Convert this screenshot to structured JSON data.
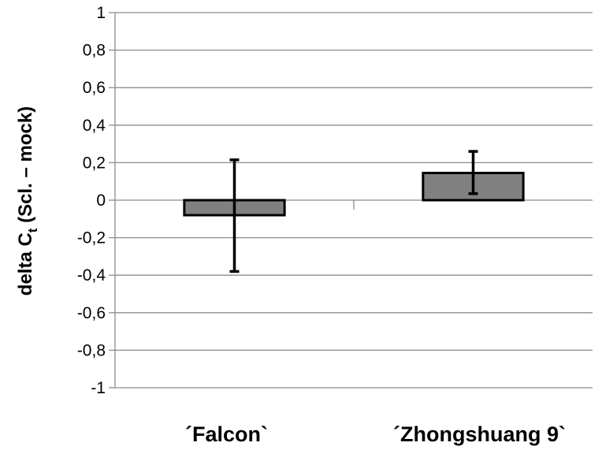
{
  "chart_data": {
    "type": "bar",
    "categories": [
      "´Falcon`",
      "´Zhongshuang 9`"
    ],
    "values": [
      -0.08,
      0.145
    ],
    "error_high": [
      0.215,
      0.26
    ],
    "error_low": [
      -0.38,
      0.035
    ],
    "ylabel": {
      "main": "delta C",
      "subscript": "t",
      "suffix": " (Scl. – mock)"
    },
    "ylim": [
      -1,
      1
    ],
    "yticks": [
      1,
      0.8,
      0.6,
      0.4,
      0.2,
      0,
      -0.2,
      -0.4,
      -0.6,
      -0.8,
      -1
    ],
    "ytick_labels": [
      "1",
      "0,8",
      "0,6",
      "0,4",
      "0,2",
      "0",
      "-0,2",
      "-0,4",
      "-0,6",
      "-0,8",
      "-1"
    ],
    "grid": true,
    "legend": "none",
    "colors": {
      "bar_fill": "#808080",
      "bar_stroke": "#000000",
      "grid": "#8c8c8c",
      "axis": "#8c8c8c",
      "error_bar": "#000000"
    }
  }
}
